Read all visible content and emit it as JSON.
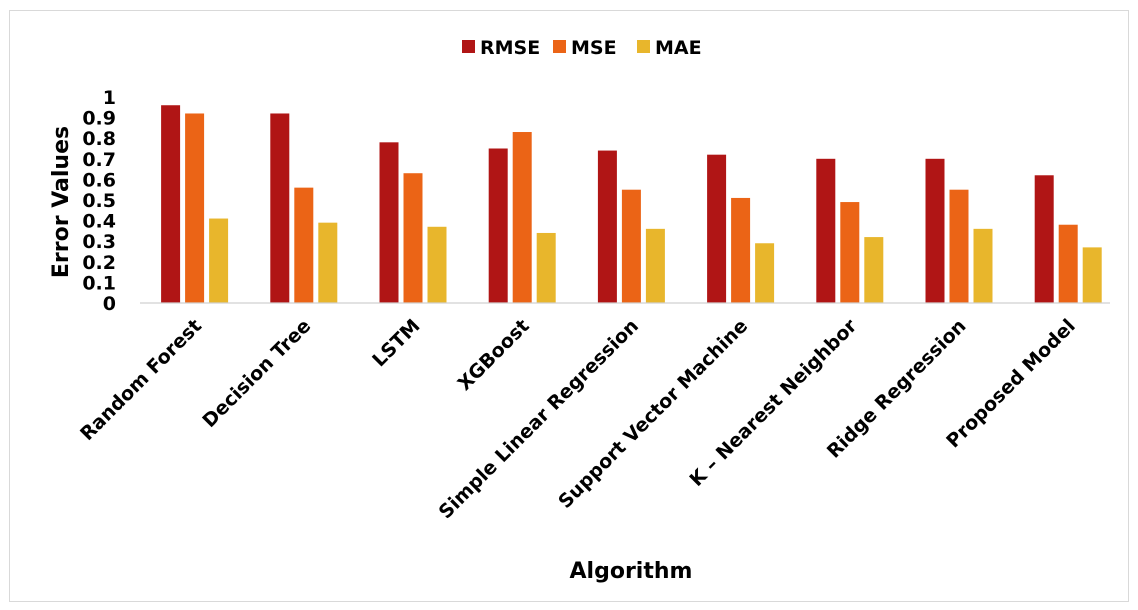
{
  "chart_data": {
    "type": "bar",
    "title": "",
    "xlabel": "Algorithm",
    "ylabel": "Error Values",
    "ylim": [
      0,
      1
    ],
    "yticks": [
      "0",
      "0.1",
      "0.2",
      "0.3",
      "0.4",
      "0.5",
      "0.6",
      "0.7",
      "0.8",
      "0.9",
      "1"
    ],
    "legend_position": "top",
    "grid": false,
    "categories": [
      "Random Forest",
      "Decision Tree",
      "LSTM",
      "XGBoost",
      "Simple Linear Regression",
      "Support Vector Machine",
      "K – Nearest Neighbor",
      "Ridge Regression",
      "Proposed Model"
    ],
    "series": [
      {
        "name": "RMSE",
        "color": "#b01515",
        "values": [
          0.96,
          0.92,
          0.78,
          0.75,
          0.74,
          0.72,
          0.7,
          0.7,
          0.62
        ]
      },
      {
        "name": "MSE",
        "color": "#eb6416",
        "values": [
          0.92,
          0.56,
          0.63,
          0.83,
          0.55,
          0.51,
          0.49,
          0.55,
          0.38
        ]
      },
      {
        "name": "MAE",
        "color": "#e8b62c",
        "values": [
          0.41,
          0.39,
          0.37,
          0.34,
          0.36,
          0.29,
          0.32,
          0.36,
          0.27
        ]
      }
    ]
  }
}
